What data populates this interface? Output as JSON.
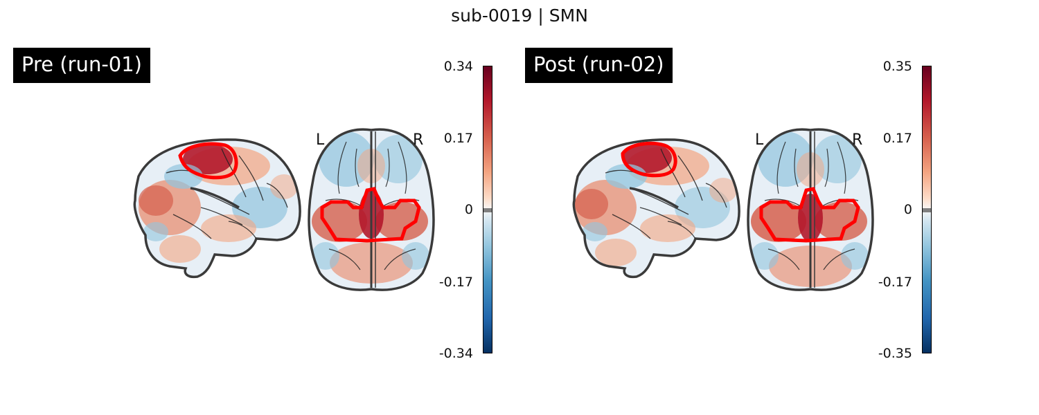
{
  "figure": {
    "title": "sub-0019 | SMN"
  },
  "panels": [
    {
      "label": "Pre (run-01)",
      "left_side": "L",
      "right_side": "R",
      "colorbar": {
        "max": "0.34",
        "upper": "0.17",
        "zero": "0",
        "lower": "-0.17",
        "min": "-0.34"
      }
    },
    {
      "label": "Post (run-02)",
      "left_side": "L",
      "right_side": "R",
      "colorbar": {
        "max": "0.35",
        "upper": "0.17",
        "zero": "0",
        "lower": "-0.17",
        "min": "-0.35"
      }
    }
  ],
  "colors": {
    "roi_outline": "#ff0000",
    "positive": "#b2182b",
    "negative": "#4393c3",
    "outline": "#3a3a3a"
  }
}
